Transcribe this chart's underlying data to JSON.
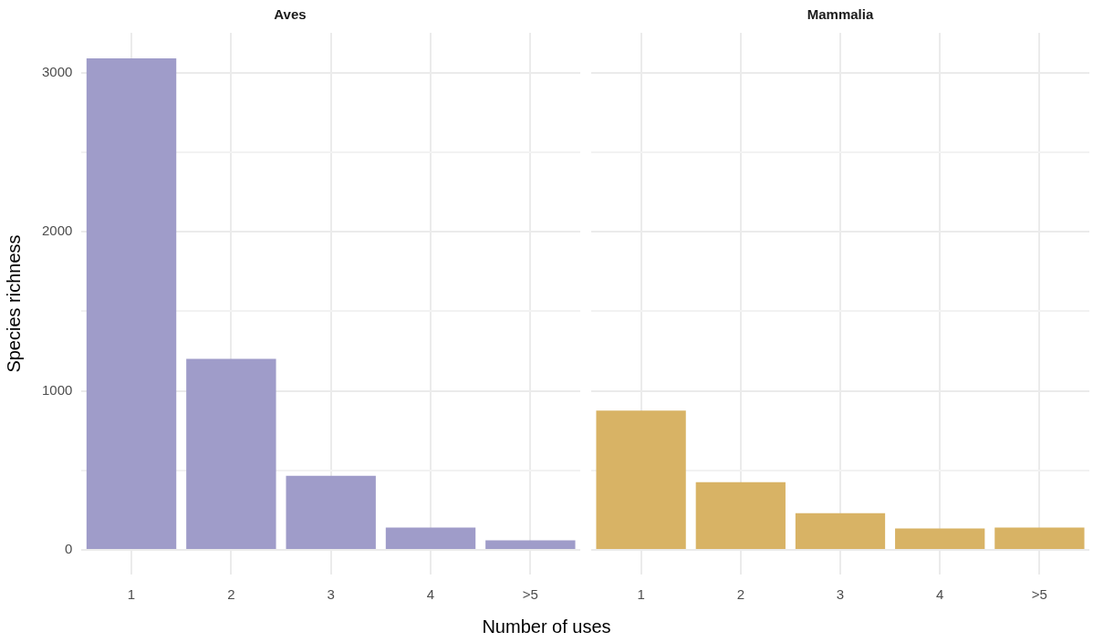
{
  "chart_data": [
    {
      "type": "bar",
      "title": "Aves",
      "xlabel": "Number of uses",
      "ylabel": "Species richness",
      "categories": [
        "1",
        "2",
        "3",
        "4",
        ">5"
      ],
      "values": [
        3090,
        1200,
        465,
        140,
        60
      ],
      "color": "#9f9cc9",
      "ylim": [
        -155,
        3250
      ],
      "yticks": [
        0,
        {
          "value": 500,
          "label": null
        },
        1000,
        {
          "value": 1500,
          "label": null
        },
        2000,
        {
          "value": 2500,
          "label": null
        },
        3000
      ],
      "grid": true
    },
    {
      "type": "bar",
      "title": "Mammalia",
      "categories": [
        "1",
        "2",
        "3",
        "4",
        ">5"
      ],
      "values": [
        875,
        425,
        230,
        135,
        140
      ],
      "color": "#d8b365",
      "ylim": [
        -155,
        3250
      ],
      "yticks": [
        0,
        {
          "value": 500,
          "label": null
        },
        1000,
        {
          "value": 1500,
          "label": null
        },
        2000,
        {
          "value": 2500,
          "label": null
        },
        3000
      ],
      "grid": true,
      "tick_labels": "x"
    }
  ]
}
